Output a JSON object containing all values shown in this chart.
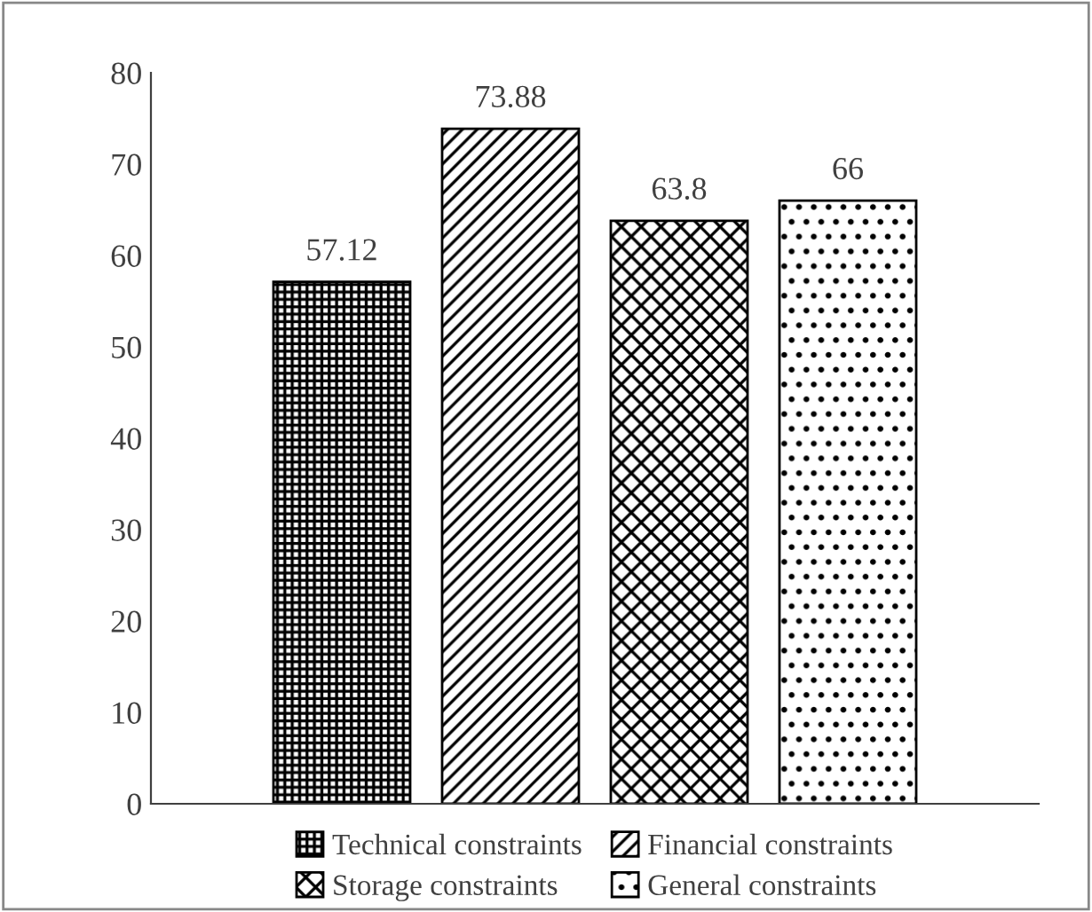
{
  "chart_data": {
    "type": "bar",
    "categories": [
      null
    ],
    "series": [
      {
        "name": "Technical constraints",
        "color": "#000000",
        "values": [
          57.12
        ]
      },
      {
        "name": "Financial constraints",
        "color": "#000000",
        "values": [
          73.88
        ]
      },
      {
        "name": "Storage constraints",
        "color": "#000000",
        "values": [
          63.8
        ]
      },
      {
        "name": "General constraints",
        "color": "#000000",
        "values": [
          66
        ]
      }
    ],
    "ylim": [
      0,
      80
    ],
    "yticks": [
      0,
      10,
      20,
      30,
      40,
      50,
      60,
      70,
      80
    ],
    "data_labels": true,
    "legend": "bottom",
    "grid": false
  }
}
